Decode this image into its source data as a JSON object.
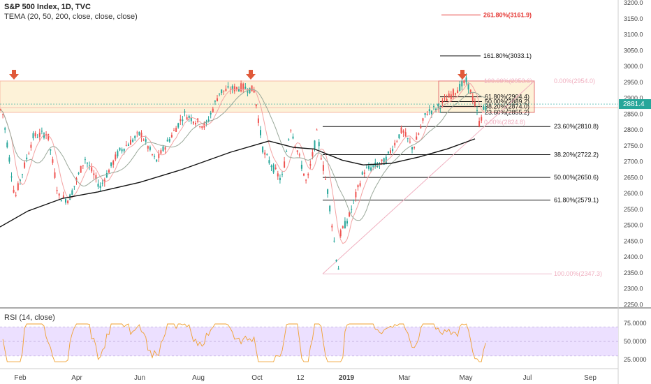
{
  "header": {
    "title": "S&P 500 Index, 1D, TVC",
    "indicator": "TEMA (20, 50, 200, close, close, close)",
    "rsi_label": "RSI (14, close)"
  },
  "colors": {
    "up": "#26a69a",
    "down": "#ef5350",
    "ma200": "#111111",
    "ma_fast": "#f4a3a3",
    "ma_mid": "#9aa89a",
    "rsi_line": "#f0a030",
    "rsi_band": "#ece0ff",
    "fib_box": "#fdf2d8",
    "fib_red": "#e53935",
    "arrow": "#e05a3a"
  },
  "chart_data": [
    {
      "type": "candlestick",
      "title": "S&P 500 Index, 1D, TVC",
      "x_ticks": [
        "Feb",
        "Apr",
        "Jun",
        "Aug",
        "Oct",
        "12",
        "2019",
        "Mar",
        "May",
        "Jul",
        "Sep"
      ],
      "y_ticks": [
        2250,
        2300,
        2350,
        2400,
        2450,
        2500,
        2550,
        2600,
        2650,
        2700,
        2750,
        2800,
        2850,
        2900,
        2950,
        3000,
        3050,
        3100,
        3150,
        3200
      ],
      "ylim": [
        2225,
        3215
      ],
      "last_price": "2881.4",
      "price_anchors": [
        [
          "2018-01-22",
          2850
        ],
        [
          "2018-01-26",
          2870
        ],
        [
          "2018-02-05",
          2650
        ],
        [
          "2018-02-08",
          2580
        ],
        [
          "2018-02-09",
          2600
        ],
        [
          "2018-02-26",
          2780
        ],
        [
          "2018-03-12",
          2790
        ],
        [
          "2018-03-23",
          2590
        ],
        [
          "2018-04-02",
          2580
        ],
        [
          "2018-04-18",
          2710
        ],
        [
          "2018-05-03",
          2620
        ],
        [
          "2018-05-21",
          2730
        ],
        [
          "2018-06-12",
          2790
        ],
        [
          "2018-06-27",
          2700
        ],
        [
          "2018-07-25",
          2850
        ],
        [
          "2018-08-15",
          2810
        ],
        [
          "2018-08-29",
          2920
        ],
        [
          "2018-09-20",
          2935
        ],
        [
          "2018-10-02",
          2925
        ],
        [
          "2018-10-11",
          2730
        ],
        [
          "2018-10-29",
          2640
        ],
        [
          "2018-11-07",
          2810
        ],
        [
          "2018-11-23",
          2630
        ],
        [
          "2018-12-03",
          2790
        ],
        [
          "2018-12-14",
          2600
        ],
        [
          "2018-12-24",
          2350
        ],
        [
          "2018-12-26",
          2470
        ],
        [
          "2019-01-04",
          2530
        ],
        [
          "2019-01-18",
          2670
        ],
        [
          "2019-02-08",
          2700
        ],
        [
          "2019-02-25",
          2800
        ],
        [
          "2019-03-08",
          2740
        ],
        [
          "2019-03-21",
          2855
        ],
        [
          "2019-04-01",
          2870
        ],
        [
          "2019-04-23",
          2935
        ],
        [
          "2019-04-30",
          2954
        ],
        [
          "2019-05-09",
          2870
        ],
        [
          "2019-05-13",
          2811
        ],
        [
          "2019-05-14",
          2834
        ],
        [
          "2019-05-17",
          2870
        ],
        [
          "2019-05-20",
          2881
        ]
      ],
      "fib_retracement_top": {
        "levels": [
          {
            "label": "0.00%(2954.0)",
            "value": 2954.0
          },
          {
            "label": "23.60%(2855.2)",
            "value": 2855.2
          },
          {
            "label": "38.20%(2874.0)",
            "value": 2874.0
          },
          {
            "label": "50.00%(2889.2)",
            "value": 2889.2
          },
          {
            "label": "61.80%(2904.4)",
            "value": 2904.4
          },
          {
            "label": "100.00%(2953.6)",
            "value": 2953.6
          },
          {
            "label": "0.00%(2824.8)",
            "value": 2824.8
          },
          {
            "label": "161.80%(3033.1)",
            "value": 3033.1
          },
          {
            "label": "261.80%(3161.9)",
            "value": 3161.9
          }
        ]
      },
      "fib_retracement_low": {
        "levels": [
          {
            "label": "23.60%(2810.8)",
            "value": 2810.8
          },
          {
            "label": "38.20%(2722.2)",
            "value": 2722.2
          },
          {
            "label": "50.00%(2650.6)",
            "value": 2650.6
          },
          {
            "label": "61.80%(2579.1)",
            "value": 2579.1
          },
          {
            "label": "100.00%(2347.3)",
            "value": 2347.3
          }
        ]
      }
    },
    {
      "type": "line",
      "title": "RSI (14, close)",
      "y_ticks": [
        25.0,
        50.0,
        75.0
      ],
      "y_tick_labels": [
        "25.0000",
        "50.0000",
        "75.0000"
      ],
      "band": [
        30,
        70
      ],
      "ylim": [
        20,
        80
      ]
    }
  ]
}
